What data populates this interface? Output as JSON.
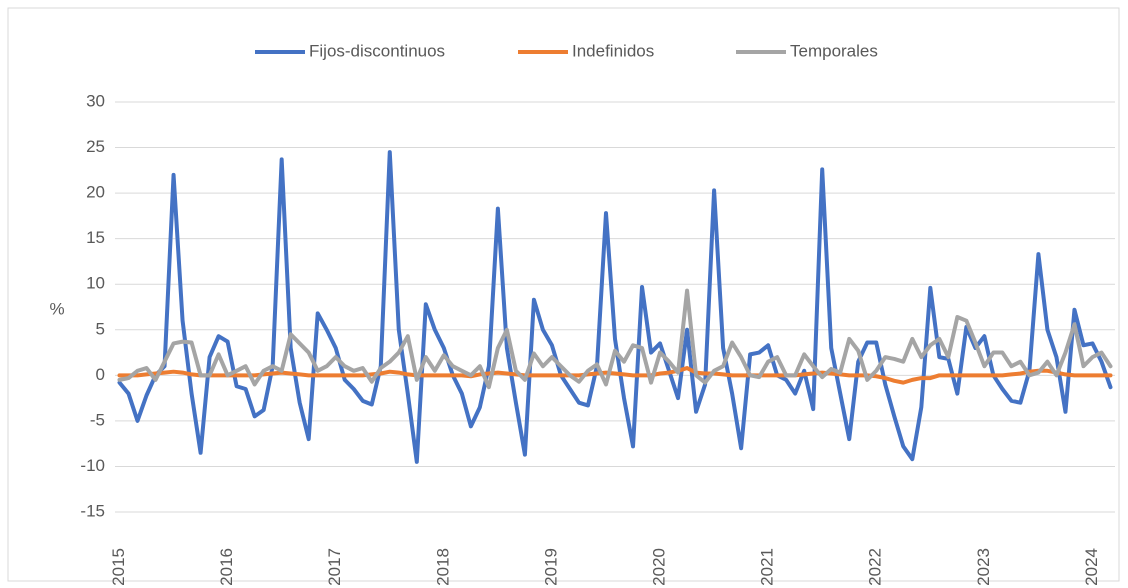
{
  "chart_data": {
    "type": "line",
    "y_label": "%",
    "categories": [
      "2015",
      null,
      null,
      null,
      null,
      null,
      null,
      null,
      null,
      null,
      null,
      null,
      "2016",
      null,
      null,
      null,
      null,
      null,
      null,
      null,
      null,
      null,
      null,
      null,
      "2017",
      null,
      null,
      null,
      null,
      null,
      null,
      null,
      null,
      null,
      null,
      null,
      "2018",
      null,
      null,
      null,
      null,
      null,
      null,
      null,
      null,
      null,
      null,
      null,
      "2019",
      null,
      null,
      null,
      null,
      null,
      null,
      null,
      null,
      null,
      null,
      null,
      "2020",
      null,
      null,
      null,
      null,
      null,
      null,
      null,
      null,
      null,
      null,
      null,
      "2021",
      null,
      null,
      null,
      null,
      null,
      null,
      null,
      null,
      null,
      null,
      null,
      "2022",
      null,
      null,
      null,
      null,
      null,
      null,
      null,
      null,
      null,
      null,
      null,
      "2023",
      null,
      null,
      null,
      null,
      null,
      null,
      null,
      null,
      null,
      null,
      null,
      "2024",
      null,
      null
    ],
    "series": [
      {
        "name": "Fijos-discontinuos",
        "color": "#4472c4",
        "values": [
          -0.8,
          -2,
          -5,
          -2.2,
          0,
          1,
          22,
          6,
          -2,
          -8.5,
          2,
          4.3,
          3.7,
          -1.2,
          -1.5,
          -4.5,
          -3.8,
          1,
          23.7,
          3,
          -3,
          -7,
          6.8,
          5,
          3,
          -0.5,
          -1.5,
          -2.8,
          -3.2,
          1,
          24.5,
          5,
          -2,
          -9.5,
          7.8,
          5,
          3,
          0,
          -2,
          -5.6,
          -3.5,
          1,
          18.3,
          3,
          -3,
          -8.7,
          8.3,
          5,
          3.3,
          0,
          -1.5,
          -3,
          -3.3,
          1,
          17.8,
          4,
          -2.5,
          -7.8,
          9.7,
          2.5,
          3.5,
          0.5,
          -2.5,
          5,
          -4,
          -1,
          20.3,
          3,
          -2,
          -8,
          2.3,
          2.5,
          3.3,
          0,
          -0.5,
          -2,
          0.5,
          -3.7,
          22.6,
          3,
          -2,
          -7,
          1.5,
          3.6,
          3.6,
          -1,
          -4.5,
          -7.8,
          -9.2,
          -3.5,
          9.6,
          2,
          1.8,
          -2,
          5.3,
          3,
          4.3,
          0,
          -1.5,
          -2.8,
          -3,
          0.5,
          13.3,
          5,
          2,
          -4,
          7.2,
          3.3,
          3.5,
          1.5,
          -1.3
        ]
      },
      {
        "name": "Indefinidos",
        "color": "#ed7d31",
        "values": [
          0,
          0,
          0,
          0.1,
          0.2,
          0.3,
          0.4,
          0.3,
          0.1,
          0,
          0,
          0,
          0,
          0,
          0,
          0,
          0.1,
          0.2,
          0.3,
          0.2,
          0.1,
          0,
          0,
          0,
          0,
          0,
          0,
          0,
          0.1,
          0.2,
          0.4,
          0.3,
          0.1,
          0,
          0,
          0,
          0,
          0,
          0,
          -0.1,
          0.1,
          0.2,
          0.3,
          0.2,
          0.1,
          0,
          0,
          0,
          0,
          0,
          0,
          0,
          0.1,
          0.2,
          0.3,
          0.2,
          0.1,
          0,
          0,
          0,
          0.2,
          0.3,
          0.5,
          0.8,
          0.3,
          0.2,
          0.2,
          0.1,
          0,
          0,
          0,
          0,
          0,
          0,
          0,
          0,
          0.1,
          0.2,
          0.3,
          0.2,
          0.1,
          0,
          0,
          0,
          -0.1,
          -0.3,
          -0.6,
          -0.8,
          -0.5,
          -0.3,
          -0.3,
          0,
          0,
          0,
          0,
          0,
          0,
          0,
          0,
          0.1,
          0.2,
          0.4,
          0.5,
          0.5,
          0.3,
          0.1,
          0,
          0,
          0,
          0,
          0
        ]
      },
      {
        "name": "Temporales",
        "color": "#a5a5a5",
        "values": [
          -0.5,
          -0.3,
          0.5,
          0.8,
          -0.5,
          1.5,
          3.5,
          3.7,
          3.6,
          0,
          0,
          2.3,
          0,
          0.5,
          1,
          -1,
          0.5,
          1,
          0.5,
          4.5,
          3.5,
          2.5,
          0.5,
          1,
          2,
          1,
          0.5,
          0.8,
          -0.7,
          0.8,
          1.5,
          2.5,
          4.3,
          -0.5,
          2,
          0.5,
          2.2,
          1,
          0.5,
          0,
          1,
          -1.3,
          3,
          5,
          0.5,
          -0.5,
          2.4,
          1,
          2,
          1,
          0,
          -0.7,
          0.5,
          1.2,
          -1,
          2.7,
          1.5,
          3.3,
          3,
          -0.8,
          2.5,
          1.5,
          0.3,
          9.3,
          0,
          -0.8,
          0.5,
          1,
          3.6,
          2,
          0,
          -0.2,
          1.5,
          2,
          0,
          0,
          2.3,
          1,
          -0.2,
          0.7,
          0.3,
          4,
          2.7,
          -0.5,
          0.5,
          2,
          1.8,
          1.5,
          4,
          2,
          3.3,
          4,
          2,
          6.4,
          6,
          3.6,
          1,
          2.5,
          2.5,
          1,
          1.5,
          0,
          0.3,
          1.5,
          0,
          2.5,
          5.6,
          1,
          2,
          2.5,
          1
        ]
      }
    ],
    "ylim": [
      -15,
      30
    ],
    "yticks": [
      -15,
      -10,
      -5,
      0,
      5,
      10,
      15,
      20,
      25,
      30
    ],
    "grid": true,
    "legend": "top"
  }
}
